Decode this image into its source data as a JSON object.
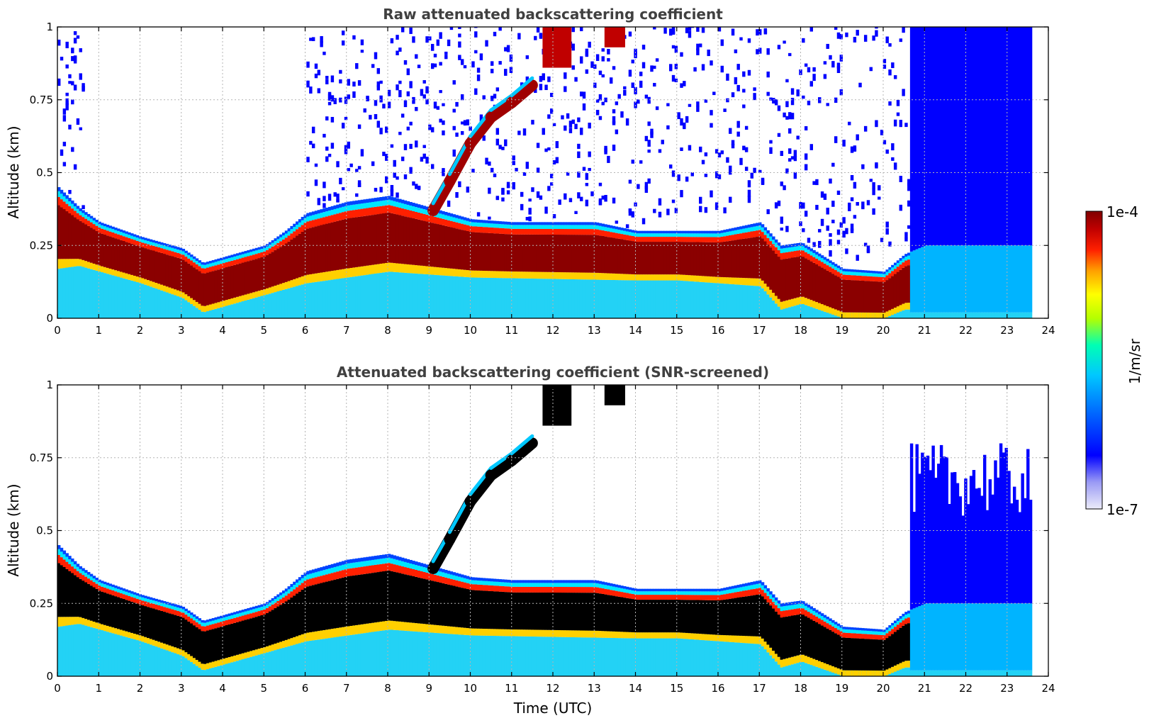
{
  "chart_data": [
    {
      "type": "heatmap",
      "title": "Raw attenuated backscattering coefficient",
      "ylabel": "Altitude (km)",
      "xlabel": "",
      "xlim": [
        0,
        24
      ],
      "ylim": [
        0,
        1
      ],
      "xticks": [
        "0",
        "1",
        "2",
        "3",
        "4",
        "5",
        "6",
        "7",
        "8",
        "9",
        "10",
        "11",
        "12",
        "13",
        "14",
        "15",
        "16",
        "17",
        "18",
        "19",
        "20",
        "21",
        "22",
        "23",
        "24"
      ],
      "yticks": [
        "0",
        "0.25",
        "0.5",
        "0.75",
        "1"
      ],
      "grid": true,
      "data_extent_hours": [
        0,
        23.6
      ],
      "layer_top_km": [
        [
          0,
          0.45
        ],
        [
          0.5,
          0.38
        ],
        [
          1,
          0.33
        ],
        [
          2,
          0.28
        ],
        [
          3,
          0.24
        ],
        [
          3.5,
          0.19
        ],
        [
          4,
          0.21
        ],
        [
          5,
          0.25
        ],
        [
          5.5,
          0.3
        ],
        [
          6,
          0.36
        ],
        [
          7,
          0.4
        ],
        [
          8,
          0.42
        ],
        [
          9,
          0.38
        ],
        [
          10,
          0.34
        ],
        [
          11,
          0.33
        ],
        [
          12,
          0.33
        ],
        [
          13,
          0.33
        ],
        [
          14,
          0.3
        ],
        [
          15,
          0.3
        ],
        [
          16,
          0.3
        ],
        [
          17,
          0.33
        ],
        [
          17.5,
          0.25
        ],
        [
          18,
          0.26
        ],
        [
          19,
          0.17
        ],
        [
          20,
          0.16
        ],
        [
          20.5,
          0.22
        ],
        [
          21,
          0.25
        ],
        [
          22,
          0.25
        ],
        [
          23,
          0.25
        ],
        [
          23.6,
          0.25
        ]
      ],
      "layer_base_km": [
        [
          0,
          0.17
        ],
        [
          0.5,
          0.18
        ],
        [
          1,
          0.16
        ],
        [
          2,
          0.12
        ],
        [
          3,
          0.07
        ],
        [
          3.5,
          0.02
        ],
        [
          4,
          0.04
        ],
        [
          5,
          0.08
        ],
        [
          5.5,
          0.1
        ],
        [
          6,
          0.12
        ],
        [
          7,
          0.14
        ],
        [
          8,
          0.16
        ],
        [
          9,
          0.15
        ],
        [
          10,
          0.14
        ],
        [
          14,
          0.13
        ],
        [
          15,
          0.13
        ],
        [
          16,
          0.12
        ],
        [
          17,
          0.11
        ],
        [
          17.5,
          0.03
        ],
        [
          18,
          0.05
        ],
        [
          19,
          0.0
        ],
        [
          20,
          0.0
        ],
        [
          20.5,
          0.03
        ]
      ],
      "rising_layer_km": [
        [
          9.1,
          0.37
        ],
        [
          9.5,
          0.47
        ],
        [
          10,
          0.6
        ],
        [
          10.5,
          0.69
        ],
        [
          11,
          0.74
        ],
        [
          11.5,
          0.8
        ]
      ],
      "upper_patches": [
        {
          "t0": 11.75,
          "t1": 12.45,
          "h0": 0.86,
          "h1": 1.0
        },
        {
          "t0": 13.25,
          "t1": 13.75,
          "h0": 0.93,
          "h1": 1.0
        }
      ]
    },
    {
      "type": "heatmap",
      "title": "Attenuated backscattering coefficient (SNR-screened)",
      "ylabel": "Altitude (km)",
      "xlabel": "Time (UTC)",
      "xlim": [
        0,
        24
      ],
      "ylim": [
        0,
        1
      ],
      "xticks": [
        "0",
        "1",
        "2",
        "3",
        "4",
        "5",
        "6",
        "7",
        "8",
        "9",
        "10",
        "11",
        "12",
        "13",
        "14",
        "15",
        "16",
        "17",
        "18",
        "19",
        "20",
        "21",
        "22",
        "23",
        "24"
      ],
      "yticks": [
        "0",
        "0.25",
        "0.5",
        "0.75",
        "1"
      ],
      "grid": true,
      "saturated_color": "#000000"
    }
  ],
  "colorbar": {
    "label": "1/m/sr",
    "max_label": "1e-4",
    "min_label": "1e-7",
    "scale": "log",
    "colors": [
      "#ececf9",
      "#b4b4f7",
      "#0000ff",
      "#0066ff",
      "#00c8ff",
      "#00ffb4",
      "#b4ff00",
      "#ffff00",
      "#ffa000",
      "#ff2000",
      "#c00000",
      "#800000"
    ]
  }
}
